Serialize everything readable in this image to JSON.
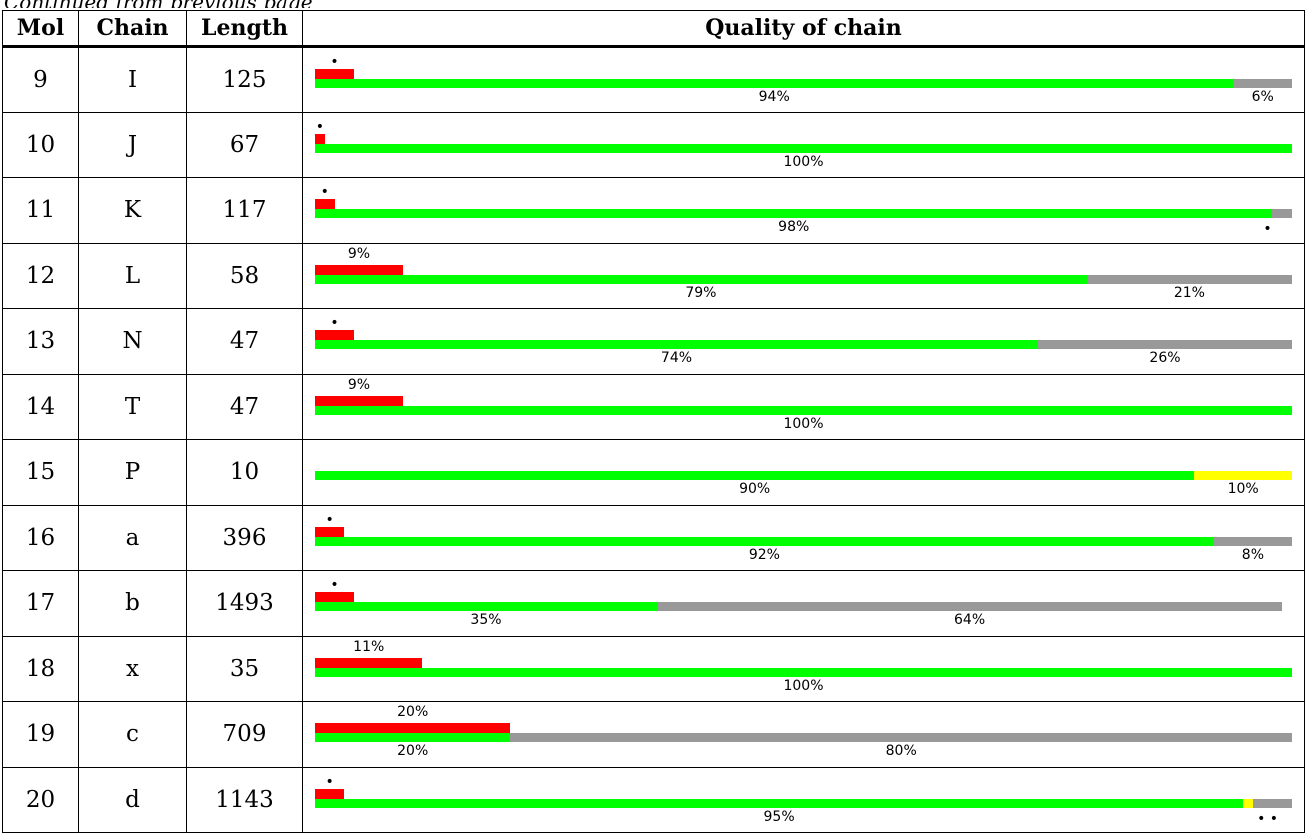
{
  "caption": "Continued from previous page",
  "headers": {
    "mol": "Mol",
    "chain": "Chain",
    "length": "Length",
    "quality": "Quality of chain"
  },
  "colors": {
    "good": "#00ff00",
    "outlier": "#ff0000",
    "missing": "#999999",
    "partial": "#ffff00"
  },
  "rows": [
    {
      "mol": "9",
      "chain": "I",
      "length": "125",
      "res_fraction": 0.04,
      "res_label": "•",
      "segments": [
        {
          "kind": "good",
          "fraction": 0.94,
          "label": "94%"
        },
        {
          "kind": "missing",
          "fraction": 0.06,
          "label": "6%"
        }
      ],
      "bottom_dots": ""
    },
    {
      "mol": "10",
      "chain": "J",
      "length": "67",
      "res_fraction": 0.01,
      "res_label": "•",
      "segments": [
        {
          "kind": "good",
          "fraction": 1.0,
          "label": "100%"
        }
      ],
      "bottom_dots": ""
    },
    {
      "mol": "11",
      "chain": "K",
      "length": "117",
      "res_fraction": 0.02,
      "res_label": "•",
      "segments": [
        {
          "kind": "good",
          "fraction": 0.98,
          "label": "98%"
        },
        {
          "kind": "missing",
          "fraction": 0.02,
          "label": ""
        }
      ],
      "bottom_dots": "•"
    },
    {
      "mol": "12",
      "chain": "L",
      "length": "58",
      "res_fraction": 0.09,
      "res_label": "9%",
      "segments": [
        {
          "kind": "good",
          "fraction": 0.79,
          "label": "79%"
        },
        {
          "kind": "missing",
          "fraction": 0.21,
          "label": "21%"
        }
      ],
      "bottom_dots": ""
    },
    {
      "mol": "13",
      "chain": "N",
      "length": "47",
      "res_fraction": 0.04,
      "res_label": "•",
      "segments": [
        {
          "kind": "good",
          "fraction": 0.74,
          "label": "74%"
        },
        {
          "kind": "missing",
          "fraction": 0.26,
          "label": "26%"
        }
      ],
      "bottom_dots": ""
    },
    {
      "mol": "14",
      "chain": "T",
      "length": "47",
      "res_fraction": 0.09,
      "res_label": "9%",
      "segments": [
        {
          "kind": "good",
          "fraction": 1.0,
          "label": "100%"
        }
      ],
      "bottom_dots": ""
    },
    {
      "mol": "15",
      "chain": "P",
      "length": "10",
      "res_fraction": 0,
      "res_label": "",
      "segments": [
        {
          "kind": "good",
          "fraction": 0.9,
          "label": "90%"
        },
        {
          "kind": "partial",
          "fraction": 0.1,
          "label": "10%"
        }
      ],
      "bottom_dots": ""
    },
    {
      "mol": "16",
      "chain": "a",
      "length": "396",
      "res_fraction": 0.03,
      "res_label": "•",
      "segments": [
        {
          "kind": "good",
          "fraction": 0.92,
          "label": "92%"
        },
        {
          "kind": "missing",
          "fraction": 0.08,
          "label": "8%"
        }
      ],
      "bottom_dots": ""
    },
    {
      "mol": "17",
      "chain": "b",
      "length": "1493",
      "res_fraction": 0.04,
      "res_label": "•",
      "segments": [
        {
          "kind": "good",
          "fraction": 0.35,
          "label": "35%"
        },
        {
          "kind": "missing",
          "fraction": 0.64,
          "label": "64%"
        }
      ],
      "bottom_dots": ""
    },
    {
      "mol": "18",
      "chain": "x",
      "length": "35",
      "res_fraction": 0.11,
      "res_label": "11%",
      "segments": [
        {
          "kind": "good",
          "fraction": 1.0,
          "label": "100%"
        }
      ],
      "bottom_dots": ""
    },
    {
      "mol": "19",
      "chain": "c",
      "length": "709",
      "res_fraction": 0.2,
      "res_label": "20%",
      "segments": [
        {
          "kind": "good",
          "fraction": 0.2,
          "label": "20%"
        },
        {
          "kind": "missing",
          "fraction": 0.8,
          "label": "80%"
        }
      ],
      "bottom_dots": ""
    },
    {
      "mol": "20",
      "chain": "d",
      "length": "1143",
      "res_fraction": 0.03,
      "res_label": "•",
      "segments": [
        {
          "kind": "good",
          "fraction": 0.95,
          "label": "95%"
        },
        {
          "kind": "partial",
          "fraction": 0.01,
          "label": ""
        },
        {
          "kind": "missing",
          "fraction": 0.04,
          "label": ""
        }
      ],
      "bottom_dots": "• •"
    }
  ]
}
